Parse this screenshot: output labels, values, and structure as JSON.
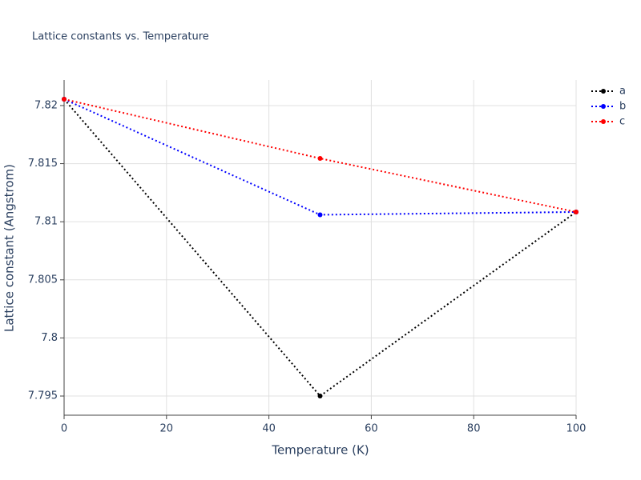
{
  "chart_data": {
    "type": "line",
    "title": "Lattice constants vs. Temperature",
    "x_label": "Temperature (K)",
    "y_label": "Lattice constant (Angstrom)",
    "x": [
      0,
      50,
      100
    ],
    "series": [
      {
        "name": "a",
        "color": "#000000",
        "values": [
          7.82055,
          7.795,
          7.81084
        ]
      },
      {
        "name": "b",
        "color": "#0000ff",
        "values": [
          7.82055,
          7.8106,
          7.81084
        ]
      },
      {
        "name": "c",
        "color": "#ff0000",
        "values": [
          7.82055,
          7.81545,
          7.81084
        ]
      }
    ],
    "xlim": [
      0,
      100
    ],
    "xticks": [
      0,
      20,
      40,
      60,
      80,
      100
    ],
    "ylim": [
      7.79335,
      7.8222
    ],
    "yticks": [
      7.795,
      7.8,
      7.805,
      7.81,
      7.815,
      7.82
    ],
    "grid": true,
    "legend": "top-right"
  }
}
